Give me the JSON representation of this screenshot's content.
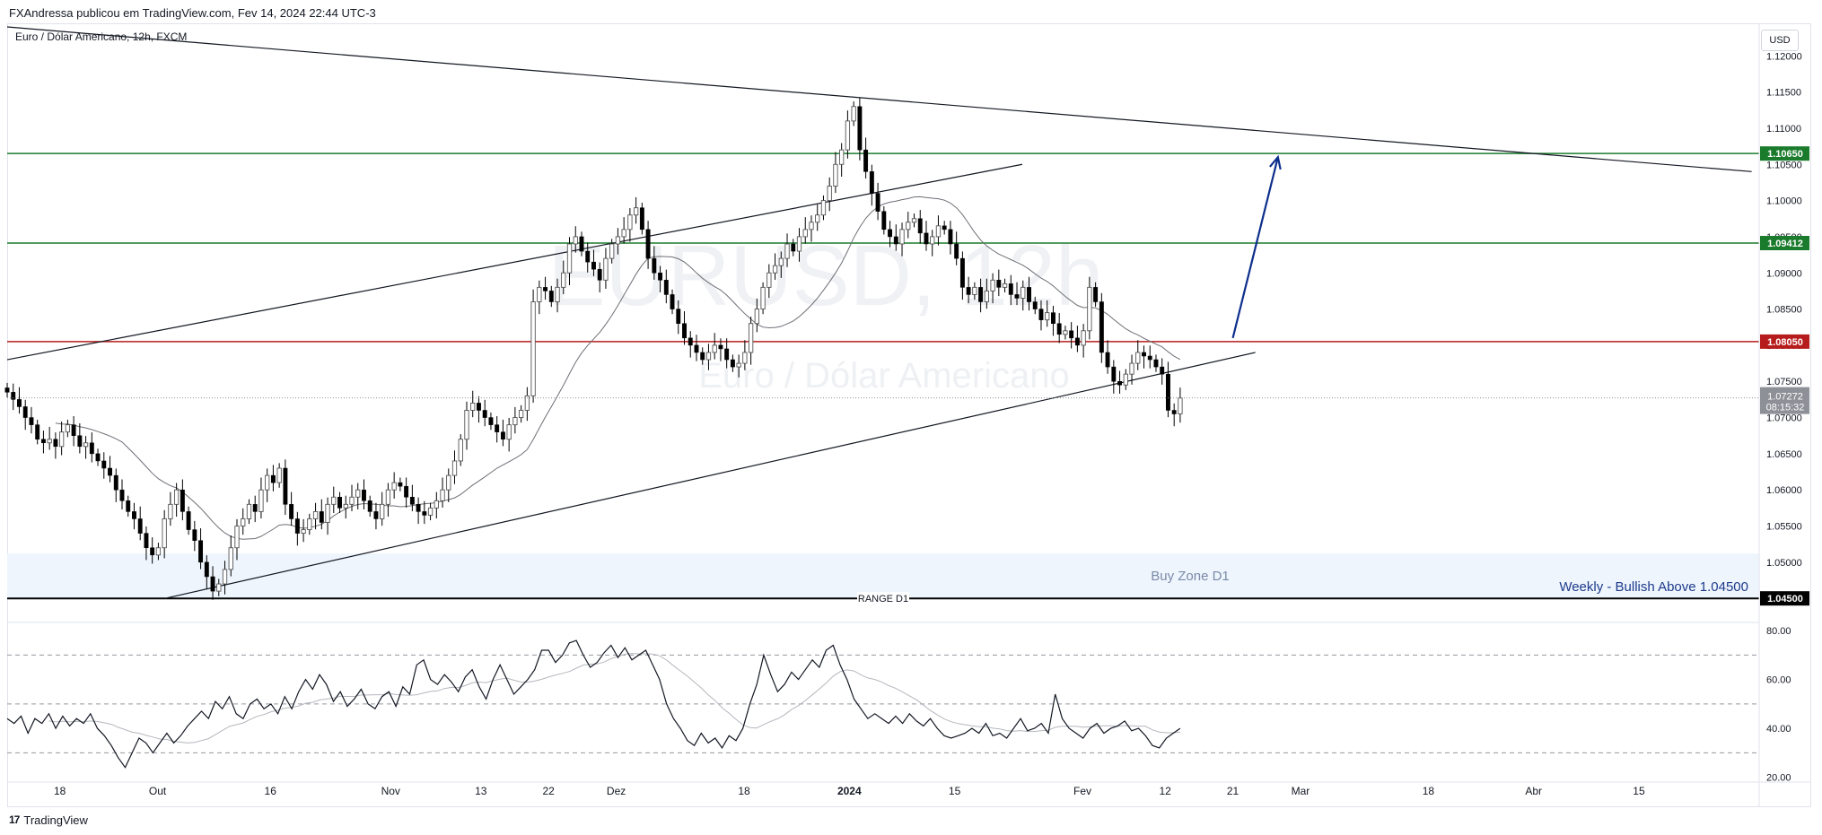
{
  "header": {
    "publisher": "FXAndressa publicou em TradingView.com, Fev 14, 2024 22:44 UTC-3"
  },
  "symbol": {
    "title": "Euro / Dólar Americano, 12h, FXCM",
    "watermark_ticker": "EURUSD, 12h",
    "watermark_name": "Euro / Dólar Americano"
  },
  "currency_button": "USD",
  "branding": {
    "logo_mark": "17",
    "name": "TradingView"
  },
  "colors": {
    "candle_body": "#000000",
    "candle_wick": "#000000",
    "green_level": "#1b7b2c",
    "red_level": "#b71c1c",
    "range_line": "#000000",
    "arrow": "#0d2f8c",
    "buy_zone": "#eef5fd",
    "price_tag": "#8d9097"
  },
  "chart_data": [
    {
      "type": "candlestick",
      "title": "Euro / Dólar Americano, 12h, FXCM",
      "ylim": [
        1.0418,
        1.1245
      ],
      "y_ticks": [
        "1.12000",
        "1.11500",
        "1.11000",
        "1.10500",
        "1.10000",
        "1.09500",
        "1.09000",
        "1.08500",
        "1.08000",
        "1.07500",
        "1.07000",
        "1.06500",
        "1.06000",
        "1.05500",
        "1.05000",
        "1.04500"
      ],
      "x_ticks": [
        {
          "label": "18",
          "x": "2023-09-18"
        },
        {
          "label": "Out",
          "x": "2023-10-01"
        },
        {
          "label": "16",
          "x": "2023-10-16"
        },
        {
          "label": "Nov",
          "x": "2023-11-01"
        },
        {
          "label": "13",
          "x": "2023-11-13"
        },
        {
          "label": "22",
          "x": "2023-11-22"
        },
        {
          "label": "Dez",
          "x": "2023-12-01"
        },
        {
          "label": "18",
          "x": "2023-12-18"
        },
        {
          "label": "2024",
          "x": "2024-01-01"
        },
        {
          "label": "15",
          "x": "2024-01-15"
        },
        {
          "label": "Fev",
          "x": "2024-02-01"
        },
        {
          "label": "12",
          "x": "2024-02-12"
        },
        {
          "label": "21",
          "x": "2024-02-21"
        },
        {
          "label": "Mar",
          "x": "2024-03-01"
        },
        {
          "label": "18",
          "x": "2024-03-18"
        },
        {
          "label": "Abr",
          "x": "2024-04-01"
        },
        {
          "label": "15",
          "x": "2024-04-15"
        }
      ],
      "series": [
        {
          "name": "EURUSD 12h",
          "kind": "ohlc",
          "x_start": "2023-09-11",
          "x_end": "2024-02-14",
          "closes": [
            1.0735,
            1.0725,
            1.0715,
            1.07,
            1.069,
            1.067,
            1.0665,
            1.067,
            1.066,
            1.068,
            1.069,
            1.0675,
            1.066,
            1.0665,
            1.065,
            1.064,
            1.063,
            1.062,
            1.06,
            1.0585,
            1.057,
            1.056,
            1.054,
            1.052,
            1.051,
            1.052,
            1.056,
            1.058,
            1.06,
            1.057,
            1.0545,
            1.053,
            1.05,
            1.048,
            1.046,
            1.047,
            1.049,
            1.052,
            1.055,
            1.056,
            1.058,
            1.057,
            1.06,
            1.062,
            1.061,
            1.063,
            1.058,
            1.056,
            1.054,
            1.0545,
            1.056,
            1.057,
            1.0555,
            1.058,
            1.059,
            1.0575,
            1.058,
            1.059,
            1.06,
            1.0585,
            1.057,
            1.056,
            1.058,
            1.06,
            1.061,
            1.0605,
            1.059,
            1.058,
            1.057,
            1.0565,
            1.0575,
            1.0585,
            1.06,
            1.062,
            1.064,
            1.067,
            1.071,
            1.072,
            1.071,
            1.07,
            1.069,
            1.068,
            1.067,
            1.069,
            1.07,
            1.071,
            1.073,
            1.086,
            1.088,
            1.0875,
            1.086,
            1.088,
            1.09,
            1.094,
            1.095,
            1.093,
            1.0915,
            1.0905,
            1.089,
            1.092,
            1.094,
            1.095,
            1.096,
            1.098,
            1.099,
            1.096,
            1.092,
            1.09,
            1.089,
            1.087,
            1.085,
            1.083,
            1.081,
            1.08,
            1.079,
            1.078,
            1.079,
            1.08,
            1.0795,
            1.078,
            1.077,
            1.0775,
            1.079,
            1.083,
            1.085,
            1.088,
            1.09,
            1.091,
            1.092,
            1.094,
            1.093,
            1.095,
            1.096,
            1.097,
            1.098,
            1.1,
            1.102,
            1.105,
            1.107,
            1.111,
            1.113,
            1.107,
            1.104,
            1.101,
            1.0985,
            1.096,
            1.095,
            1.094,
            1.096,
            1.097,
            1.0975,
            1.0955,
            1.094,
            1.095,
            1.0965,
            1.096,
            1.094,
            1.092,
            1.088,
            1.087,
            1.088,
            1.086,
            1.0875,
            1.089,
            1.088,
            1.0885,
            1.087,
            1.0865,
            1.088,
            1.086,
            1.085,
            1.0835,
            1.0845,
            1.083,
            1.0815,
            1.082,
            1.081,
            1.08,
            1.082,
            1.088,
            1.086,
            1.079,
            1.077,
            1.075,
            1.0745,
            1.076,
            1.0775,
            1.079,
            1.0785,
            1.078,
            1.077,
            1.076,
            1.071,
            1.0705,
            1.0727
          ],
          "last_price": "1.07272",
          "countdown": "08:15:32"
        },
        {
          "name": "MA",
          "kind": "line"
        }
      ],
      "annotations": {
        "horizontal_levels": [
          {
            "price": 1.1065,
            "label": "1.10650",
            "color": "green"
          },
          {
            "price": 1.09412,
            "label": "1.09412",
            "color": "green"
          },
          {
            "price": 1.0805,
            "label": "1.08050",
            "color": "red"
          },
          {
            "price": 1.045,
            "label": "1.04500",
            "color": "black",
            "line_label": "RANGE D1"
          }
        ],
        "buy_zone": {
          "from": 1.045,
          "to": 1.0512,
          "label": "Buy Zone D1"
        },
        "text": "Weekly - Bullish Above 1.04500",
        "trendlines": [
          {
            "from": [
              "2023-09-11",
              1.124
            ],
            "to": [
              "2024-04-30",
              1.104
            ]
          },
          {
            "from": [
              "2023-09-11",
              1.078
            ],
            "to": [
              "2024-01-24",
              1.105
            ]
          },
          {
            "from": [
              "2023-10-02",
              1.045
            ],
            "to": [
              "2024-02-24",
              1.079
            ]
          }
        ],
        "arrow": {
          "from": [
            "2024-02-21",
            1.081
          ],
          "to": [
            "2024-02-27",
            1.106
          ]
        }
      }
    },
    {
      "type": "line",
      "title": "",
      "ylim": [
        18,
        83
      ],
      "y_ticks": [
        "80.00",
        "60.00",
        "40.00",
        "20.00"
      ],
      "reference_lines": [
        70,
        50,
        30
      ],
      "series": [
        {
          "kind": "oscillator",
          "values": [
            44,
            42,
            45,
            38,
            44,
            42,
            46,
            40,
            45,
            41,
            44,
            42,
            46,
            40,
            37,
            33,
            28,
            24,
            30,
            36,
            34,
            30,
            34,
            38,
            34,
            37,
            41,
            44,
            47,
            44,
            51,
            48,
            53,
            46,
            44,
            50,
            52,
            48,
            50,
            46,
            53,
            48,
            55,
            60,
            56,
            62,
            58,
            51,
            55,
            49,
            52,
            56,
            50,
            48,
            53,
            55,
            49,
            57,
            54,
            66,
            68,
            60,
            58,
            62,
            59,
            55,
            61,
            64,
            57,
            52,
            60,
            66,
            60,
            54,
            57,
            60,
            64,
            72,
            72,
            67,
            70,
            75,
            76,
            70,
            65,
            67,
            71,
            74,
            69,
            73,
            68,
            70,
            72,
            66,
            60,
            50,
            44,
            40,
            35,
            33,
            38,
            34,
            36,
            32,
            37,
            35,
            40,
            50,
            58,
            70,
            62,
            55,
            58,
            63,
            60,
            64,
            68,
            65,
            72,
            74,
            66,
            60,
            52,
            48,
            44,
            46,
            44,
            42,
            45,
            42,
            46,
            43,
            41,
            44,
            40,
            37,
            36,
            37,
            38,
            40,
            38,
            42,
            37,
            38,
            36,
            40,
            44,
            39,
            40,
            42,
            38,
            54,
            44,
            40,
            38,
            36,
            40,
            42,
            38,
            40,
            41,
            43,
            39,
            40,
            37,
            33,
            32,
            36,
            38,
            40
          ]
        },
        {
          "kind": "oscillator_ma"
        }
      ]
    }
  ]
}
